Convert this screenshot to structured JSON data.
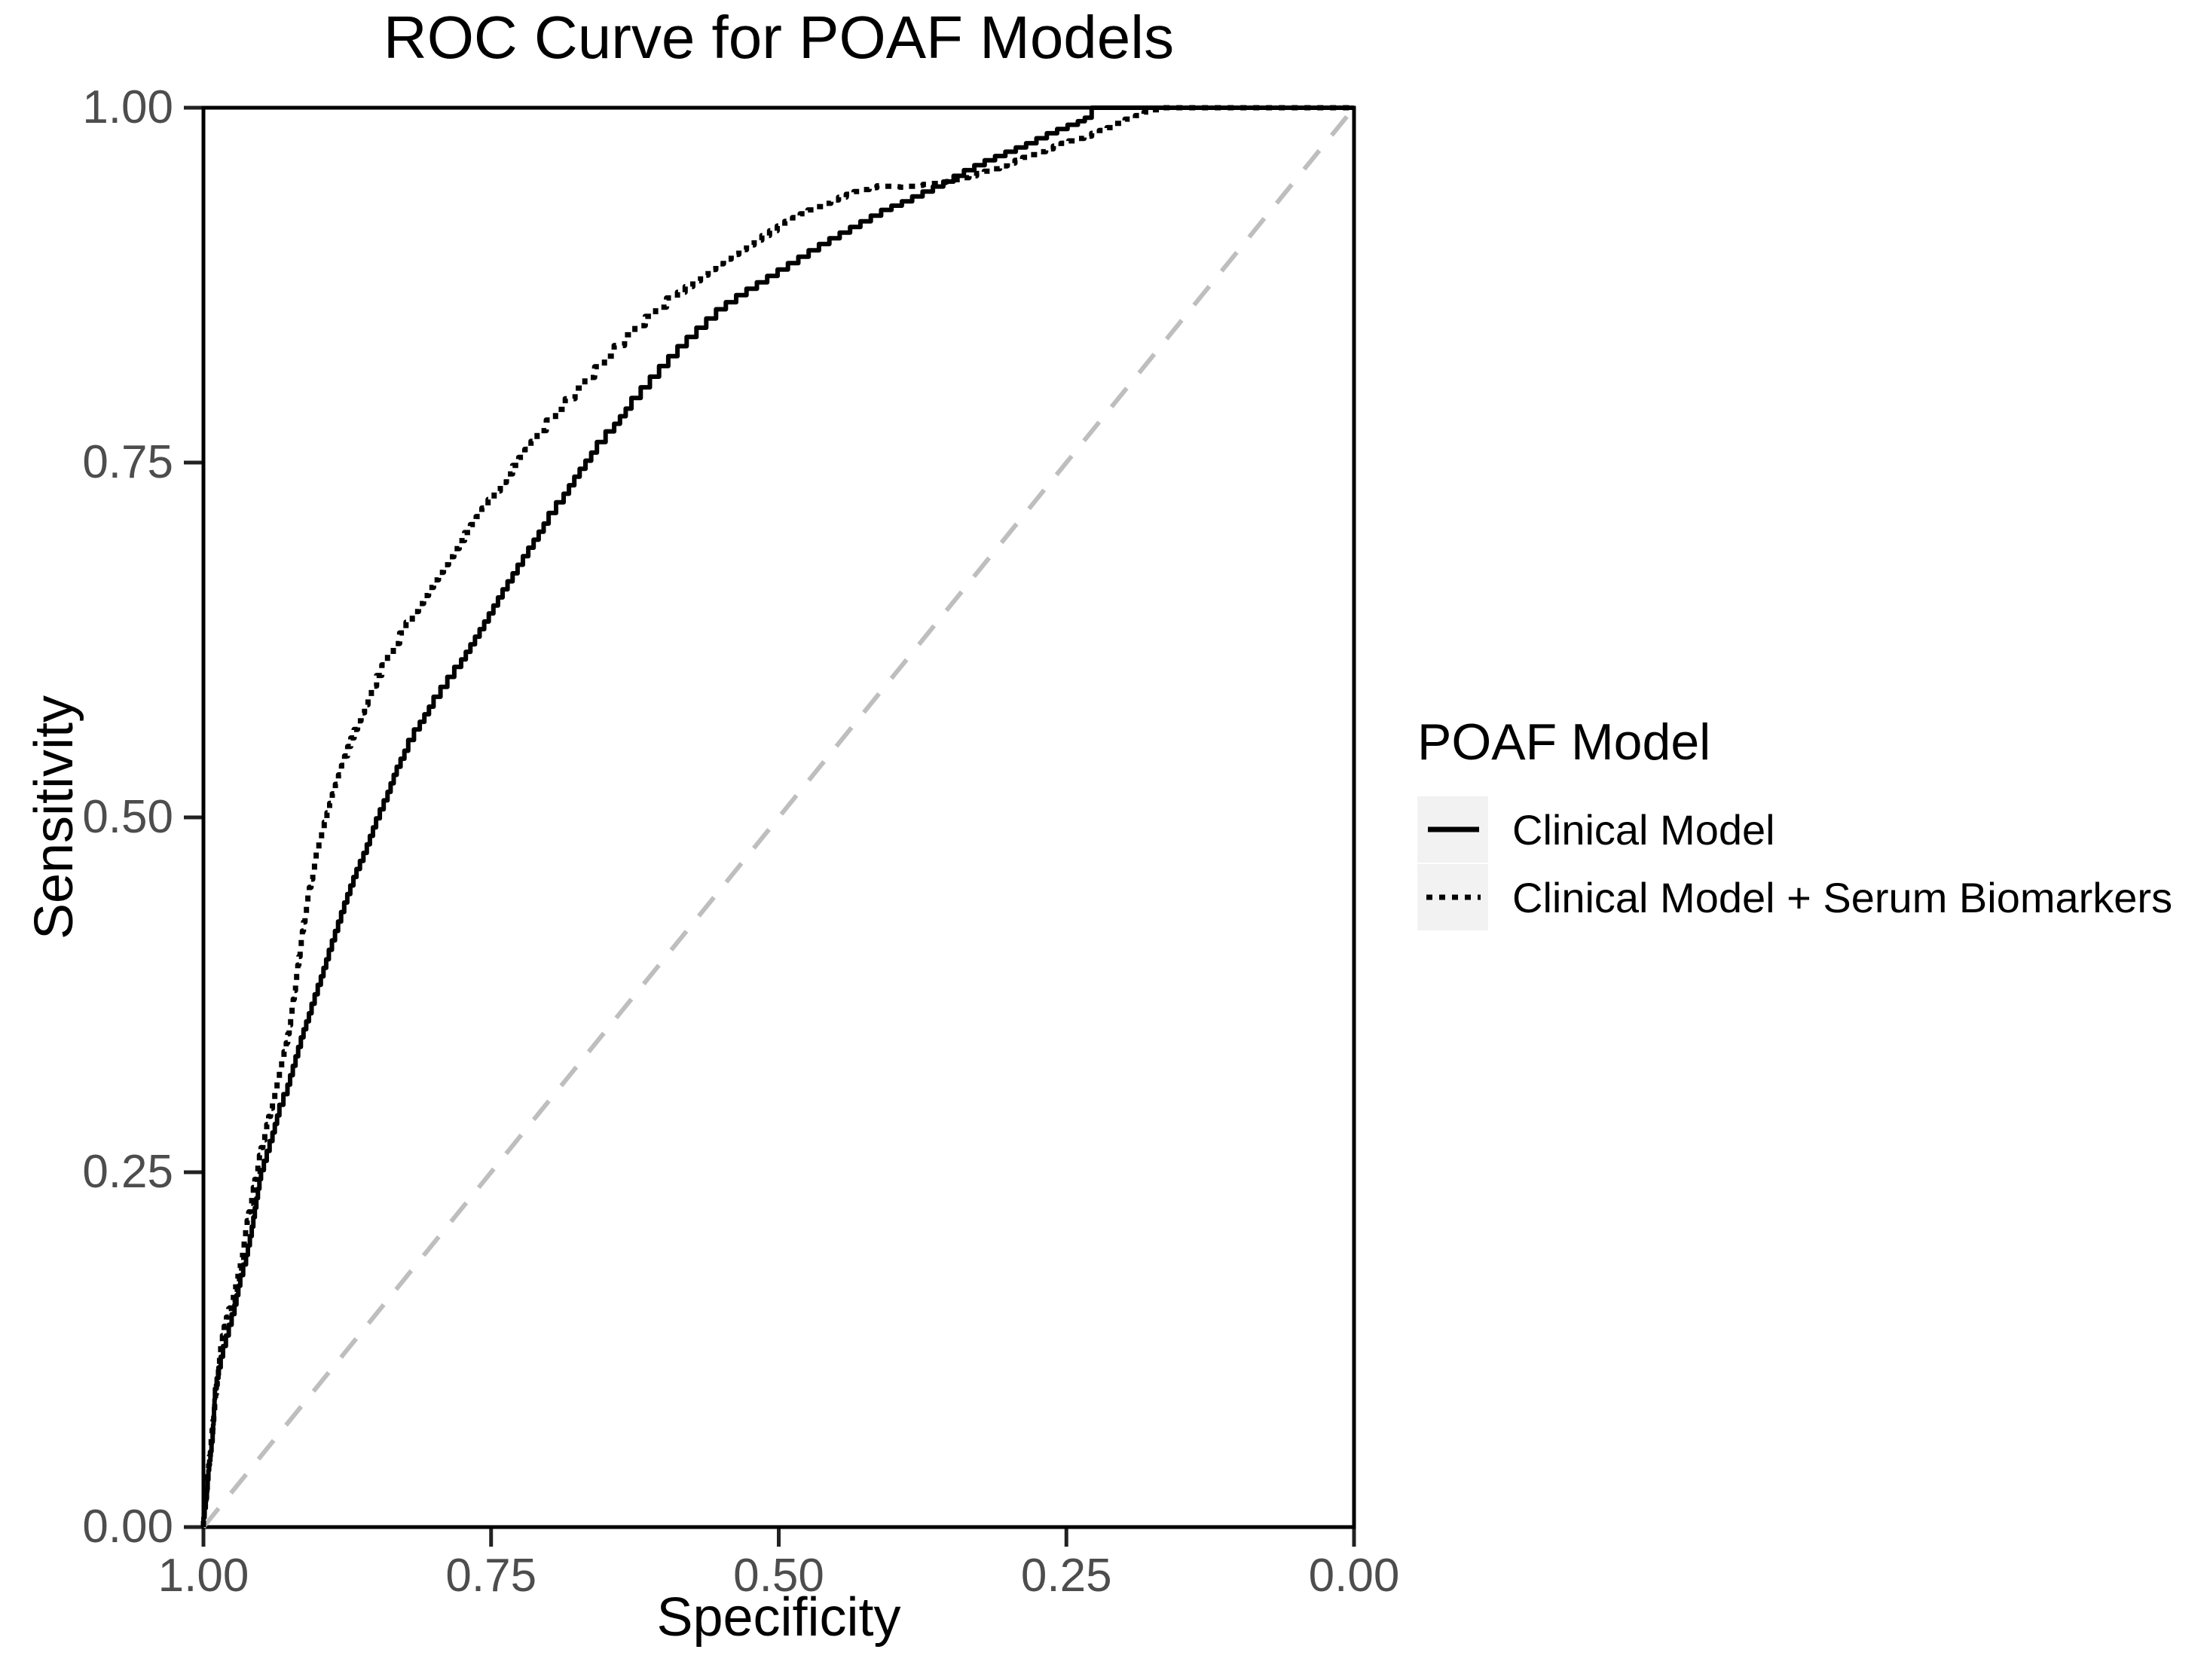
{
  "title": "ROC Curve for POAF Models",
  "axes": {
    "x_label": "Specificity",
    "y_label": "Sensitivity",
    "x_tick_labels": [
      "1.00",
      "0.75",
      "0.50",
      "0.25",
      "0.00"
    ],
    "x_tick_values": [
      1.0,
      0.75,
      0.5,
      0.25,
      0.0
    ],
    "y_tick_labels": [
      "0.00",
      "0.25",
      "0.50",
      "0.75",
      "1.00"
    ],
    "y_tick_values": [
      0.0,
      0.25,
      0.5,
      0.75,
      1.0
    ]
  },
  "legend": {
    "title": "POAF Model",
    "items": [
      {
        "label": "Clinical Model",
        "linetype": "solid"
      },
      {
        "label": "Clinical Model + Serum Biomarkers",
        "linetype": "dotted"
      }
    ]
  },
  "colors": {
    "curve": "#000000",
    "reference_line": "#BEBEBE",
    "axis_line": "#000000",
    "tick_mark": "#222222",
    "tick_label": "#4D4D4D",
    "legend_key_bg": "#F2F2F2",
    "background": "#FFFFFF"
  },
  "chart_data": {
    "type": "line",
    "title": "ROC Curve for POAF Models",
    "xlabel": "Specificity",
    "ylabel": "Sensitivity",
    "x_range": [
      1.0,
      0.0
    ],
    "y_range": [
      0.0,
      1.0
    ],
    "x_reversed": true,
    "grid": false,
    "legend_position": "right",
    "legend_title": "POAF Model",
    "reference_line": {
      "description": "chance diagonal from (specificity 1, sensitivity 0) to (specificity 0, sensitivity 1)",
      "style": "dashed",
      "color": "#BEBEBE"
    },
    "series": [
      {
        "name": "Clinical Model",
        "linetype": "solid",
        "color": "#000000",
        "points_format": [
          "specificity",
          "sensitivity"
        ],
        "points": [
          [
            1.0,
            0.0
          ],
          [
            0.997,
            0.02
          ],
          [
            0.995,
            0.04
          ],
          [
            0.992,
            0.06
          ],
          [
            0.99,
            0.09
          ],
          [
            0.987,
            0.105
          ],
          [
            0.983,
            0.12
          ],
          [
            0.978,
            0.135
          ],
          [
            0.973,
            0.15
          ],
          [
            0.968,
            0.17
          ],
          [
            0.963,
            0.185
          ],
          [
            0.958,
            0.205
          ],
          [
            0.954,
            0.225
          ],
          [
            0.95,
            0.245
          ],
          [
            0.945,
            0.258
          ],
          [
            0.94,
            0.272
          ],
          [
            0.934,
            0.29
          ],
          [
            0.927,
            0.305
          ],
          [
            0.92,
            0.325
          ],
          [
            0.913,
            0.345
          ],
          [
            0.906,
            0.362
          ],
          [
            0.898,
            0.382
          ],
          [
            0.891,
            0.4
          ],
          [
            0.883,
            0.42
          ],
          [
            0.875,
            0.44
          ],
          [
            0.867,
            0.458
          ],
          [
            0.858,
            0.475
          ],
          [
            0.85,
            0.493
          ],
          [
            0.84,
            0.512
          ],
          [
            0.832,
            0.53
          ],
          [
            0.822,
            0.547
          ],
          [
            0.812,
            0.562
          ],
          [
            0.8,
            0.578
          ],
          [
            0.788,
            0.592
          ],
          [
            0.776,
            0.606
          ],
          [
            0.764,
            0.622
          ],
          [
            0.752,
            0.638
          ],
          [
            0.74,
            0.655
          ],
          [
            0.727,
            0.672
          ],
          [
            0.713,
            0.69
          ],
          [
            0.7,
            0.707
          ],
          [
            0.687,
            0.722
          ],
          [
            0.673,
            0.74
          ],
          [
            0.658,
            0.757
          ],
          [
            0.643,
            0.772
          ],
          [
            0.628,
            0.788
          ],
          [
            0.612,
            0.803
          ],
          [
            0.596,
            0.818
          ],
          [
            0.58,
            0.832
          ],
          [
            0.563,
            0.845
          ],
          [
            0.546,
            0.858
          ],
          [
            0.528,
            0.868
          ],
          [
            0.51,
            0.877
          ],
          [
            0.492,
            0.886
          ],
          [
            0.474,
            0.895
          ],
          [
            0.456,
            0.904
          ],
          [
            0.438,
            0.912
          ],
          [
            0.42,
            0.92
          ],
          [
            0.402,
            0.928
          ],
          [
            0.384,
            0.934
          ],
          [
            0.366,
            0.941
          ],
          [
            0.348,
            0.948
          ],
          [
            0.33,
            0.956
          ],
          [
            0.312,
            0.963
          ],
          [
            0.294,
            0.969
          ],
          [
            0.276,
            0.975
          ],
          [
            0.258,
            0.982
          ],
          [
            0.24,
            0.988
          ],
          [
            0.228,
            0.993
          ],
          [
            0.218,
            1.0
          ],
          [
            0.0,
            1.0
          ]
        ]
      },
      {
        "name": "Clinical Model + Serum Biomarkers",
        "linetype": "dotted",
        "color": "#000000",
        "points_format": [
          "specificity",
          "sensitivity"
        ],
        "points": [
          [
            1.0,
            0.0
          ],
          [
            0.997,
            0.025
          ],
          [
            0.994,
            0.05
          ],
          [
            0.991,
            0.075
          ],
          [
            0.988,
            0.1
          ],
          [
            0.985,
            0.12
          ],
          [
            0.982,
            0.135
          ],
          [
            0.978,
            0.148
          ],
          [
            0.974,
            0.16
          ],
          [
            0.97,
            0.175
          ],
          [
            0.966,
            0.19
          ],
          [
            0.962,
            0.21
          ],
          [
            0.958,
            0.228
          ],
          [
            0.954,
            0.245
          ],
          [
            0.95,
            0.262
          ],
          [
            0.945,
            0.278
          ],
          [
            0.94,
            0.295
          ],
          [
            0.934,
            0.315
          ],
          [
            0.928,
            0.335
          ],
          [
            0.923,
            0.36
          ],
          [
            0.918,
            0.39
          ],
          [
            0.913,
            0.42
          ],
          [
            0.908,
            0.445
          ],
          [
            0.902,
            0.468
          ],
          [
            0.895,
            0.49
          ],
          [
            0.888,
            0.51
          ],
          [
            0.88,
            0.53
          ],
          [
            0.872,
            0.55
          ],
          [
            0.863,
            0.568
          ],
          [
            0.854,
            0.585
          ],
          [
            0.845,
            0.6
          ],
          [
            0.835,
            0.615
          ],
          [
            0.824,
            0.63
          ],
          [
            0.813,
            0.645
          ],
          [
            0.8,
            0.662
          ],
          [
            0.787,
            0.678
          ],
          [
            0.773,
            0.695
          ],
          [
            0.758,
            0.712
          ],
          [
            0.742,
            0.73
          ],
          [
            0.726,
            0.748
          ],
          [
            0.71,
            0.765
          ],
          [
            0.694,
            0.78
          ],
          [
            0.677,
            0.795
          ],
          [
            0.66,
            0.81
          ],
          [
            0.643,
            0.825
          ],
          [
            0.625,
            0.84
          ],
          [
            0.607,
            0.853
          ],
          [
            0.588,
            0.866
          ],
          [
            0.568,
            0.878
          ],
          [
            0.548,
            0.89
          ],
          [
            0.528,
            0.9
          ],
          [
            0.508,
            0.91
          ],
          [
            0.488,
            0.92
          ],
          [
            0.468,
            0.928
          ],
          [
            0.448,
            0.935
          ],
          [
            0.428,
            0.941
          ],
          [
            0.408,
            0.945
          ],
          [
            0.388,
            0.944
          ],
          [
            0.368,
            0.946
          ],
          [
            0.348,
            0.948
          ],
          [
            0.328,
            0.952
          ],
          [
            0.308,
            0.957
          ],
          [
            0.288,
            0.963
          ],
          [
            0.268,
            0.969
          ],
          [
            0.248,
            0.975
          ],
          [
            0.228,
            0.98
          ],
          [
            0.208,
            0.986
          ],
          [
            0.19,
            0.992
          ],
          [
            0.175,
            0.997
          ],
          [
            0.163,
            1.0
          ],
          [
            0.0,
            1.0
          ]
        ]
      }
    ]
  }
}
